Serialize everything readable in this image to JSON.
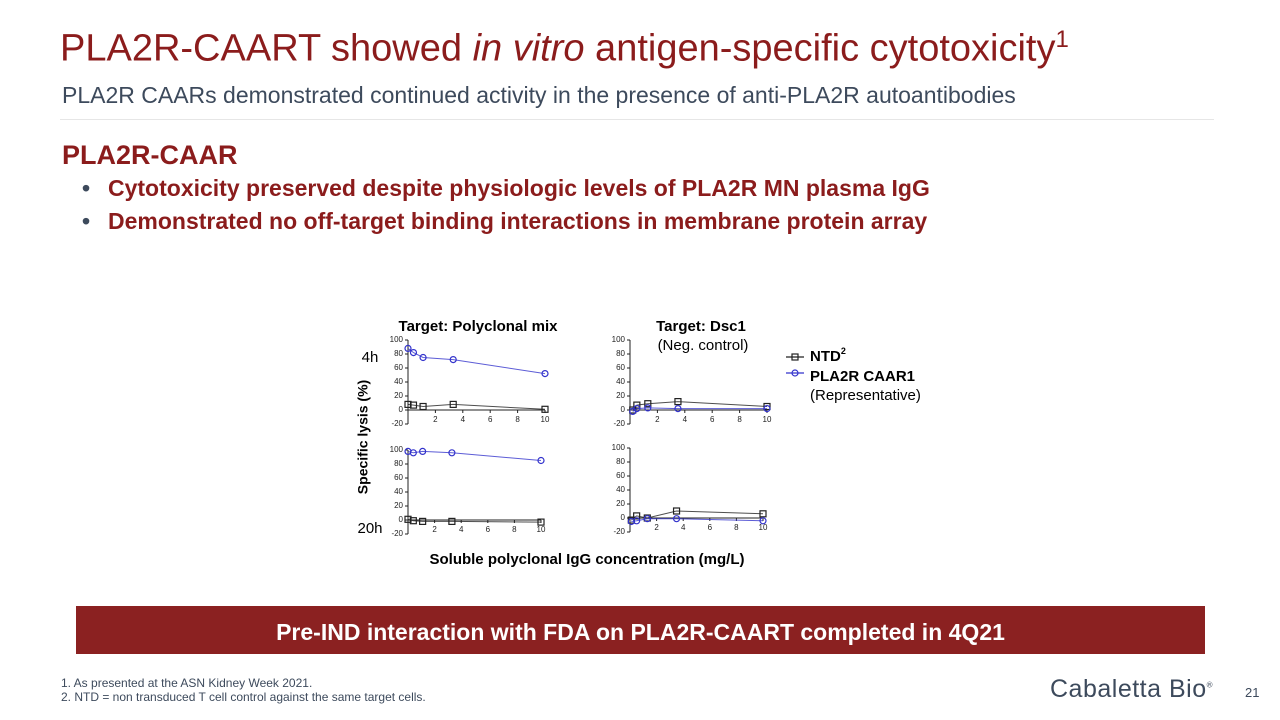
{
  "slide": {
    "title": {
      "pre": "PLA2R-CAART showed ",
      "italic": "in vitro",
      "post": " antigen-specific cytotoxicity",
      "sup": "1"
    },
    "subtitle": "PLA2R CAARs demonstrated continued activity in the presence of anti-PLA2R autoantibodies",
    "heading": "PLA2R-CAAR",
    "bullets": [
      "Cytotoxicity preserved despite physiologic levels of PLA2R MN plasma IgG",
      "Demonstrated no off-target binding interactions in membrane protein array"
    ],
    "banner": "Pre-IND interaction with FDA on PLA2R-CAART completed in 4Q21",
    "footnotes": [
      "1. As presented at the ASN Kidney Week 2021.",
      "2. NTD = non transduced T cell control against the same target cells."
    ],
    "logo": "Cabaletta Bio",
    "logo_mark": "®",
    "page": "21"
  },
  "figure": {
    "y_label": "Specific lysis (%)",
    "x_label": "Soluble polyclonal IgG concentration (mg/L)",
    "col_titles": [
      "Target: Polyclonal mix",
      "Target: Dsc1"
    ],
    "col_note": "(Neg. control)",
    "row_labels": [
      "4h",
      "20h"
    ],
    "legend": [
      {
        "label": "NTD",
        "sup": "2",
        "color": "#222222",
        "marker": "square"
      },
      {
        "label": "PLA2R CAAR1",
        "color": "#3333cc",
        "marker": "circle"
      }
    ],
    "legend_note": "(Representative)"
  },
  "chart_data": [
    {
      "type": "line",
      "xlim": [
        0,
        10
      ],
      "ylim": [
        -20,
        100
      ],
      "xticks": [
        2,
        4,
        6,
        8,
        10
      ],
      "yticks": [
        -20,
        0,
        20,
        40,
        60,
        80,
        100
      ],
      "x": [
        0,
        0.4,
        1.1,
        3.3,
        10
      ],
      "series": [
        {
          "color": "#222222",
          "marker": "square",
          "values": [
            8,
            7,
            5,
            8,
            1
          ]
        },
        {
          "color": "#3333cc",
          "marker": "circle",
          "values": [
            88,
            82,
            75,
            72,
            52
          ]
        }
      ]
    },
    {
      "type": "line",
      "xlim": [
        0,
        10
      ],
      "ylim": [
        -20,
        100
      ],
      "xticks": [
        2,
        4,
        6,
        8,
        10
      ],
      "yticks": [
        -20,
        0,
        20,
        40,
        60,
        80,
        100
      ],
      "x": [
        0.2,
        0.5,
        1.3,
        3.5,
        10
      ],
      "series": [
        {
          "color": "#222222",
          "marker": "square",
          "values": [
            0,
            7,
            9,
            12,
            5
          ]
        },
        {
          "color": "#3333cc",
          "marker": "circle",
          "values": [
            -2,
            2,
            3,
            2,
            2
          ]
        }
      ]
    },
    {
      "type": "line",
      "xlim": [
        0,
        10
      ],
      "ylim": [
        -20,
        100
      ],
      "xticks": [
        2,
        4,
        6,
        8,
        10
      ],
      "yticks": [
        -20,
        0,
        20,
        40,
        60,
        80,
        100
      ],
      "x": [
        0,
        0.4,
        1.1,
        3.3,
        10
      ],
      "series": [
        {
          "color": "#222222",
          "marker": "square",
          "values": [
            1,
            -1,
            -2,
            -2,
            -3
          ]
        },
        {
          "color": "#3333cc",
          "marker": "circle",
          "values": [
            98,
            96,
            98,
            96,
            85
          ]
        }
      ]
    },
    {
      "type": "line",
      "xlim": [
        0,
        10
      ],
      "ylim": [
        -20,
        100
      ],
      "xticks": [
        2,
        4,
        6,
        8,
        10
      ],
      "yticks": [
        -20,
        0,
        20,
        40,
        60,
        80,
        100
      ],
      "x": [
        0.1,
        0.5,
        1.3,
        3.5,
        10
      ],
      "series": [
        {
          "color": "#222222",
          "marker": "square",
          "values": [
            -3,
            3,
            0,
            10,
            6
          ]
        },
        {
          "color": "#3333cc",
          "marker": "circle",
          "values": [
            -5,
            -4,
            -1,
            -1,
            -4
          ]
        }
      ]
    }
  ]
}
